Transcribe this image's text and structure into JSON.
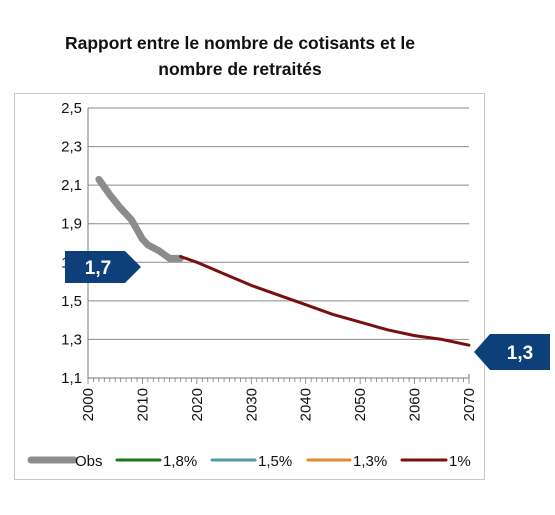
{
  "chart_data": {
    "type": "line",
    "title": "Rapport entre le nombre de cotisants et le nombre de retraités",
    "title_lines": [
      "Rapport entre le nombre de cotisants et le",
      "nombre de retraités"
    ],
    "xlabel": "",
    "ylabel": "",
    "xlim": [
      2000,
      2070
    ],
    "ylim": [
      1.1,
      2.5
    ],
    "x_ticks": [
      2000,
      2010,
      2020,
      2030,
      2040,
      2050,
      2060,
      2070
    ],
    "x_tick_labels": [
      "2000",
      "2010",
      "2020",
      "2030",
      "2040",
      "2050",
      "2060",
      "2070"
    ],
    "y_ticks": [
      1.1,
      1.3,
      1.5,
      1.7,
      1.9,
      2.1,
      2.3,
      2.5
    ],
    "y_tick_labels": [
      "1,1",
      "1,3",
      "1,5",
      "1,7",
      "1,9",
      "2,1",
      "2,3",
      "2,5"
    ],
    "grid": "horizontal",
    "legend_position": "bottom",
    "series": [
      {
        "name": "Obs",
        "color": "#8c8c8c",
        "x": [
          2002,
          2004,
          2006,
          2008,
          2009,
          2010,
          2011,
          2013,
          2015,
          2017
        ],
        "y": [
          2.13,
          2.05,
          1.98,
          1.92,
          1.87,
          1.82,
          1.79,
          1.76,
          1.72,
          1.72
        ]
      },
      {
        "name": "1,8%",
        "color": "#1a7a1a",
        "x": [],
        "y": []
      },
      {
        "name": "1,5%",
        "color": "#4d9aa6",
        "x": [],
        "y": []
      },
      {
        "name": "1,3%",
        "color": "#e08a2c",
        "x": [],
        "y": []
      },
      {
        "name": "1%",
        "color": "#7a0f0f",
        "x": [
          2017,
          2020,
          2025,
          2030,
          2035,
          2040,
          2045,
          2050,
          2055,
          2060,
          2065,
          2070
        ],
        "y": [
          1.73,
          1.7,
          1.64,
          1.58,
          1.53,
          1.48,
          1.43,
          1.39,
          1.35,
          1.32,
          1.3,
          1.27
        ]
      }
    ],
    "callouts": [
      {
        "label": "1,7",
        "color": "#0d3f7a"
      },
      {
        "label": "1,3",
        "color": "#0d3f7a"
      }
    ]
  }
}
